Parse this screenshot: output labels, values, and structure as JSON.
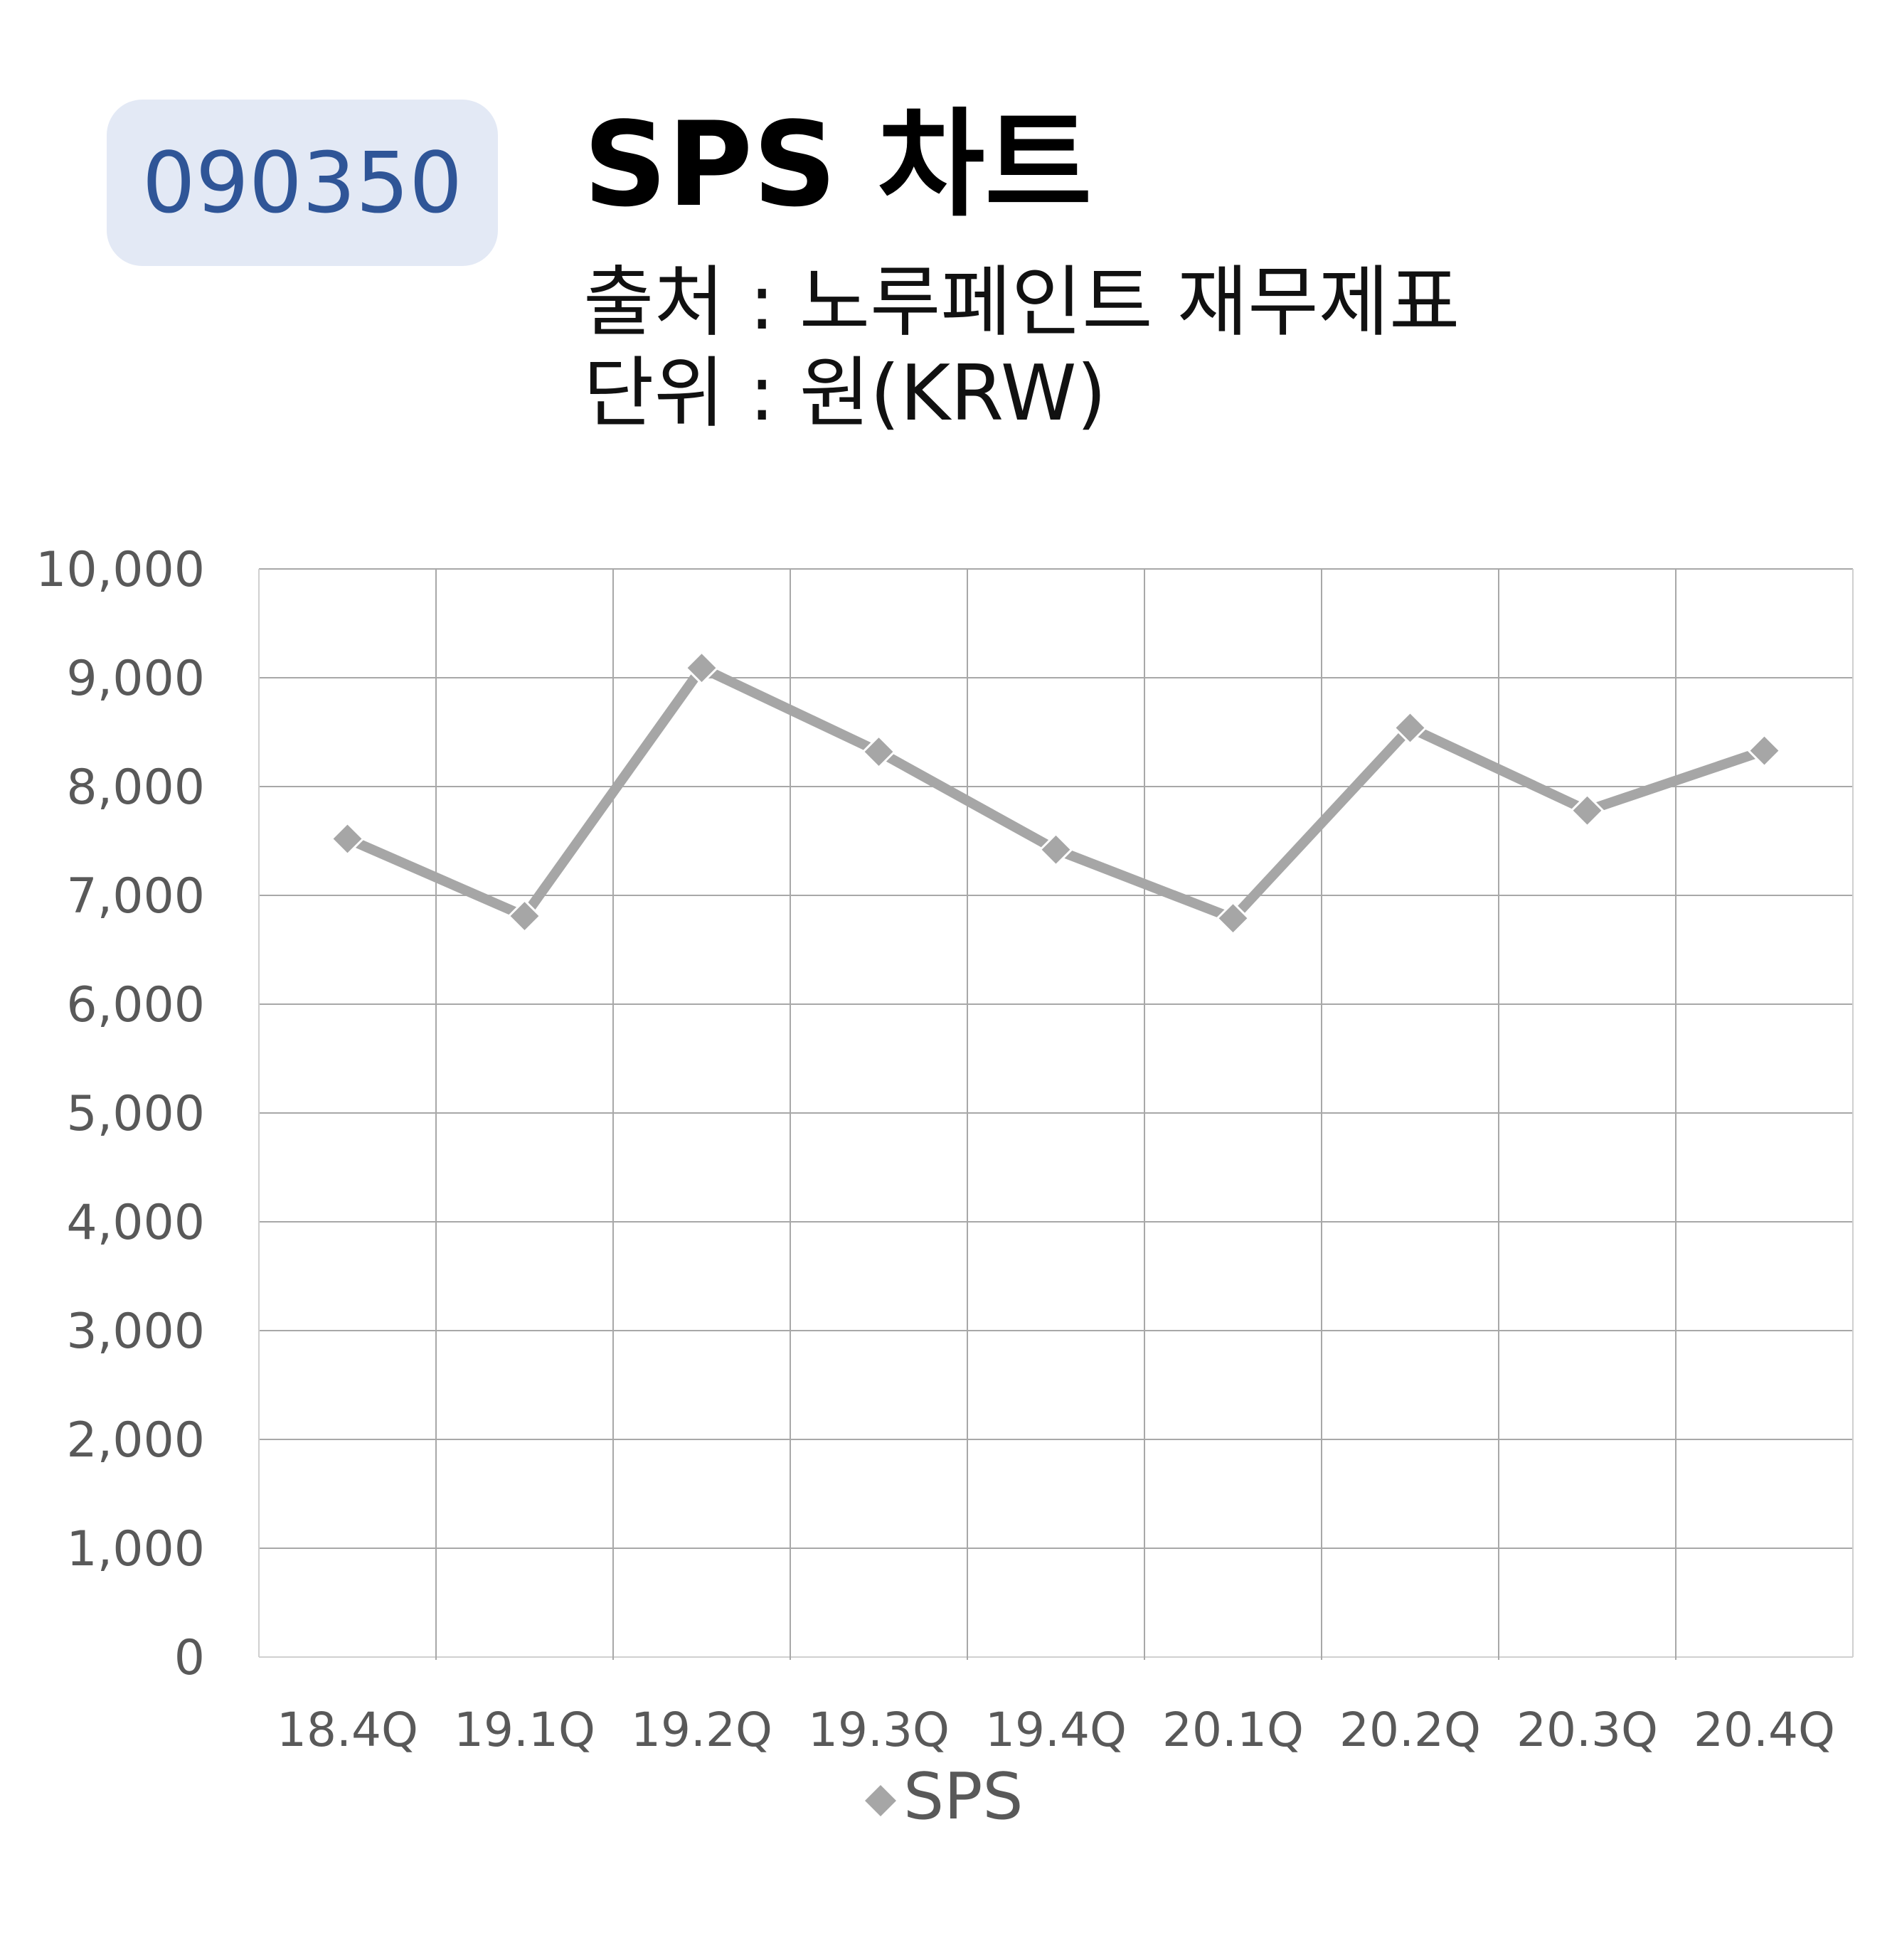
{
  "header": {
    "code": "090350",
    "title": "SPS 차트",
    "source": "출처 : 노루페인트 재무제표",
    "unit": "단위 : 원(KRW)"
  },
  "colors": {
    "badge_bg": "#e3e9f5",
    "badge_text": "#2f5597",
    "series": "#a6a6a6",
    "grid": "#bfbfbf",
    "axis_text": "#595959"
  },
  "chart_data": {
    "type": "line",
    "categories": [
      "18.4Q",
      "19.1Q",
      "19.2Q",
      "19.3Q",
      "19.4Q",
      "20.1Q",
      "20.2Q",
      "20.3Q",
      "20.4Q"
    ],
    "series": [
      {
        "name": "SPS",
        "values": [
          7520,
          6810,
          9090,
          8320,
          7420,
          6790,
          8540,
          7780,
          8330
        ]
      }
    ],
    "ylim": [
      0,
      10000
    ],
    "yticks": [
      "0",
      "1,000",
      "2,000",
      "3,000",
      "4,000",
      "5,000",
      "6,000",
      "7,000",
      "8,000",
      "9,000",
      "10,000"
    ],
    "grid": true,
    "legend": "bottom",
    "marker": "diamond"
  }
}
